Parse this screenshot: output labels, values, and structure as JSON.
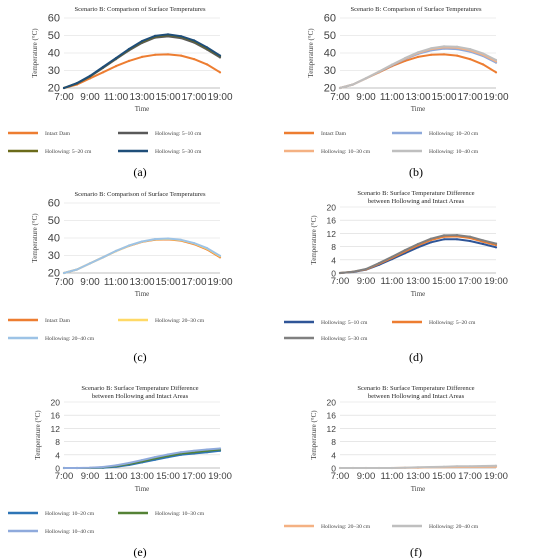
{
  "colors": {
    "orange": "#ed7d31",
    "dark_gray": "#595959",
    "olive": "#6b6b1a",
    "navy": "#1f4e79",
    "light_blue": "#8ea9db",
    "peach": "#f4b183",
    "silver": "#bfbfbf",
    "yellow": "#ffd966",
    "pale_blue": "#9dc3e6",
    "royal_blue": "#2f5597",
    "gray": "#808080",
    "steel_blue": "#2e75b6",
    "green": "#548235",
    "lavender": "#8faadc"
  },
  "chart_data": [
    {
      "type": "line",
      "title": "Scenario B: Comparison of Surface Temperatures",
      "xlabel": "Time",
      "ylabel": "Temperature (°C)",
      "ylim": [
        20,
        60
      ],
      "yticks": [
        "20",
        "30",
        "40",
        "50",
        "60"
      ],
      "xticks": [
        "7:00",
        "9:00",
        "11:00",
        "13:00",
        "15:00",
        "17:00",
        "19:00"
      ],
      "x": [
        "7:00",
        "8:00",
        "9:00",
        "10:00",
        "11:00",
        "12:00",
        "13:00",
        "14:00",
        "15:00",
        "16:00",
        "17:00",
        "18:00",
        "19:00"
      ],
      "series": [
        {
          "name": "Intact Dam",
          "color": "orange",
          "values": [
            20,
            22,
            25.5,
            29,
            32.5,
            35.5,
            37.8,
            39,
            39.2,
            38.5,
            36.5,
            33.5,
            29
          ]
        },
        {
          "name": "Hollowing: 5–10 cm",
          "color": "dark_gray",
          "values": [
            20,
            22.6,
            26.5,
            31.5,
            36.5,
            41.5,
            45.8,
            48.8,
            49.5,
            48.5,
            46,
            42,
            37.5
          ]
        },
        {
          "name": "Hollowing: 5–20 cm",
          "color": "olive",
          "values": [
            20,
            22.7,
            26.7,
            31.8,
            36.9,
            42,
            46.4,
            49.4,
            50.3,
            49.3,
            46.8,
            42.7,
            38.2
          ]
        },
        {
          "name": "Hollowing: 5–30 cm",
          "color": "navy",
          "values": [
            20,
            22.8,
            26.9,
            32,
            37.1,
            42.3,
            46.8,
            49.8,
            50.6,
            49.6,
            47.2,
            43.2,
            38.5
          ]
        }
      ],
      "legend": "bottom",
      "panel_label": "(a)"
    },
    {
      "type": "line",
      "title": "Scenario B: Comparison of Surface Temperatures",
      "xlabel": "Time",
      "ylabel": "Temperature (°C)",
      "ylim": [
        20,
        60
      ],
      "yticks": [
        "20",
        "30",
        "40",
        "50",
        "60"
      ],
      "xticks": [
        "7:00",
        "9:00",
        "11:00",
        "13:00",
        "15:00",
        "17:00",
        "19:00"
      ],
      "x": [
        "7:00",
        "8:00",
        "9:00",
        "10:00",
        "11:00",
        "12:00",
        "13:00",
        "14:00",
        "15:00",
        "16:00",
        "17:00",
        "18:00",
        "19:00"
      ],
      "series": [
        {
          "name": "Intact Dam",
          "color": "orange",
          "values": [
            20,
            22,
            25.5,
            29,
            32.5,
            35.5,
            37.8,
            39,
            39.2,
            38.5,
            36.5,
            33.5,
            29
          ]
        },
        {
          "name": "Hollowing: 10–20 cm",
          "color": "light_blue",
          "values": [
            20,
            22,
            25.5,
            29.2,
            33,
            36.5,
            39.5,
            41.5,
            42.5,
            42.2,
            40.8,
            38.3,
            34.5
          ]
        },
        {
          "name": "Hollowing: 10–30 cm",
          "color": "peach",
          "values": [
            20,
            22,
            25.5,
            29.3,
            33.2,
            36.8,
            40,
            42.2,
            43.2,
            43,
            41.5,
            39,
            35.2
          ]
        },
        {
          "name": "Hollowing: 10–40 cm",
          "color": "silver",
          "values": [
            20,
            22,
            25.6,
            29.4,
            33.4,
            37.1,
            40.4,
            42.7,
            43.8,
            43.6,
            42.2,
            39.7,
            36
          ]
        }
      ],
      "legend": "bottom",
      "panel_label": "(b)"
    },
    {
      "type": "line",
      "title": "Scenario B: Comparison of Surface Temperatures",
      "xlabel": "Time",
      "ylabel": "Temperature (°C)",
      "ylim": [
        20,
        60
      ],
      "yticks": [
        "20",
        "30",
        "40",
        "50",
        "60"
      ],
      "xticks": [
        "7:00",
        "9:00",
        "11:00",
        "13:00",
        "15:00",
        "17:00",
        "19:00"
      ],
      "x": [
        "7:00",
        "8:00",
        "9:00",
        "10:00",
        "11:00",
        "12:00",
        "13:00",
        "14:00",
        "15:00",
        "16:00",
        "17:00",
        "18:00",
        "19:00"
      ],
      "series": [
        {
          "name": "Intact Dam",
          "color": "orange",
          "values": [
            20,
            22,
            25.5,
            29,
            32.5,
            35.5,
            37.8,
            39,
            39.2,
            38.5,
            36.5,
            33.5,
            29
          ]
        },
        {
          "name": "Hollowing: 20–30 cm",
          "color": "yellow",
          "values": [
            20,
            22,
            25.5,
            29,
            32.5,
            35.6,
            37.9,
            39.2,
            39.5,
            38.8,
            36.9,
            33.9,
            29.5
          ]
        },
        {
          "name": "Hollowing: 20–40 cm",
          "color": "pale_blue",
          "values": [
            20,
            22,
            25.5,
            29,
            32.6,
            35.7,
            38,
            39.4,
            39.7,
            39,
            37.1,
            34.2,
            29.8
          ]
        }
      ],
      "legend": "bottom",
      "panel_label": "(c)"
    },
    {
      "type": "line",
      "title": "Scenario B: Surface Temperature Difference between Hollowing and Intact Areas",
      "xlabel": "Time",
      "ylabel": "Temperature (°C)",
      "ylim": [
        0,
        20
      ],
      "yticks": [
        "0",
        "4",
        "8",
        "12",
        "16",
        "20"
      ],
      "xticks": [
        "7:00",
        "9:00",
        "11:00",
        "13:00",
        "15:00",
        "17:00",
        "19:00"
      ],
      "x": [
        "7:00",
        "8:00",
        "9:00",
        "10:00",
        "11:00",
        "12:00",
        "13:00",
        "14:00",
        "15:00",
        "16:00",
        "17:00",
        "18:00",
        "19:00"
      ],
      "series": [
        {
          "name": "Hollowing: 5–10 cm",
          "color": "royal_blue",
          "values": [
            0,
            0.3,
            1,
            2.5,
            4.2,
            6,
            7.8,
            9.3,
            10.2,
            10.2,
            9.7,
            8.8,
            7.8
          ]
        },
        {
          "name": "Hollowing: 5–20 cm",
          "color": "orange",
          "values": [
            0,
            0.4,
            1.1,
            2.8,
            4.6,
            6.5,
            8.4,
            10,
            11,
            11.1,
            10.6,
            9.5,
            8.5
          ]
        },
        {
          "name": "Hollowing: 5–30 cm",
          "color": "gray",
          "values": [
            0,
            0.4,
            1.2,
            3,
            4.9,
            6.9,
            8.8,
            10.4,
            11.4,
            11.5,
            11,
            9.9,
            8.9
          ]
        }
      ],
      "legend": "bottom",
      "panel_label": "(d)"
    },
    {
      "type": "line",
      "title": "Scenario B: Surface Temperature Difference between Hollowing and Intact Areas",
      "xlabel": "Time",
      "ylabel": "Temperature (°C)",
      "ylim": [
        0,
        20
      ],
      "yticks": [
        "0",
        "4",
        "8",
        "12",
        "16",
        "20"
      ],
      "xticks": [
        "7:00",
        "9:00",
        "11:00",
        "13:00",
        "15:00",
        "17:00",
        "19:00"
      ],
      "x": [
        "7:00",
        "8:00",
        "9:00",
        "10:00",
        "11:00",
        "12:00",
        "13:00",
        "14:00",
        "15:00",
        "16:00",
        "17:00",
        "18:00",
        "19:00"
      ],
      "series": [
        {
          "name": "Hollowing: 10–20 cm",
          "color": "steel_blue",
          "values": [
            0,
            0,
            0,
            0.1,
            0.4,
            0.9,
            1.7,
            2.5,
            3.3,
            4,
            4.4,
            4.8,
            5.2
          ]
        },
        {
          "name": "Hollowing: 10–30 cm",
          "color": "green",
          "values": [
            0,
            0,
            0,
            0.2,
            0.6,
            1.2,
            2,
            2.9,
            3.7,
            4.4,
            4.8,
            5.2,
            5.6
          ]
        },
        {
          "name": "Hollowing: 10–40 cm",
          "color": "lavender",
          "values": [
            0,
            0,
            0.1,
            0.3,
            0.8,
            1.5,
            2.4,
            3.3,
            4.1,
            4.8,
            5.2,
            5.6,
            5.9
          ]
        }
      ],
      "legend": "bottom",
      "panel_label": "(e)"
    },
    {
      "type": "line",
      "title": "Scenario B: Surface Temperature Difference between Hollowing and Intact Areas",
      "xlabel": "Time",
      "ylabel": "Temperature (°C)",
      "ylim": [
        0,
        20
      ],
      "yticks": [
        "0",
        "4",
        "8",
        "12",
        "16",
        "20"
      ],
      "xticks": [
        "7:00",
        "9:00",
        "11:00",
        "13:00",
        "15:00",
        "17:00",
        "19:00"
      ],
      "x": [
        "7:00",
        "8:00",
        "9:00",
        "10:00",
        "11:00",
        "12:00",
        "13:00",
        "14:00",
        "15:00",
        "16:00",
        "17:00",
        "18:00",
        "19:00"
      ],
      "series": [
        {
          "name": "Hollowing: 20–30 cm",
          "color": "peach",
          "values": [
            0,
            0,
            0,
            0,
            0,
            0.1,
            0.1,
            0.2,
            0.2,
            0.3,
            0.3,
            0.4,
            0.4
          ]
        },
        {
          "name": "Hollowing: 20–40 cm",
          "color": "silver",
          "values": [
            0,
            0,
            0,
            0,
            0,
            0.1,
            0.2,
            0.3,
            0.4,
            0.5,
            0.5,
            0.6,
            0.7
          ]
        }
      ],
      "legend": "bottom",
      "panel_label": "(f)"
    }
  ]
}
